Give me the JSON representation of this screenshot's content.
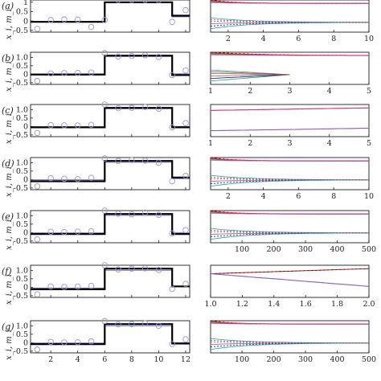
{
  "figure": {
    "panel_labels": [
      "(a)",
      "(b)",
      "(c)",
      "(d)",
      "(e)",
      "(f)",
      "(g)"
    ],
    "y_axis_label": "x_i, m_i"
  },
  "colors": {
    "step": "#000000",
    "mean": "#6b6bd6",
    "marker": "#9a9ac8",
    "red": "#e03030",
    "magenta": "#c040c0",
    "green": "#2a9a2a",
    "cyan": "#20a0b0",
    "black": "#202020"
  },
  "chart_data": [
    {
      "panel": "a",
      "type": "line",
      "left": {
        "x_ticks": [
          2,
          4,
          6,
          8,
          10,
          12
        ],
        "x_tick_labels": [],
        "xlim": [
          0.5,
          12.3
        ],
        "y_ticks": [
          -0.5,
          0,
          0.5,
          1.0
        ],
        "y_tick_labels": [
          "-0.5",
          "0",
          "0.5",
          "1"
        ],
        "ylim": [
          -0.6,
          1.12
        ],
        "step": {
          "x": [
            0.5,
            6,
            6,
            11,
            11,
            12.3
          ],
          "y": [
            -0.05,
            -0.05,
            1.0,
            1.0,
            0.28,
            0.28
          ]
        },
        "mean": {
          "x": [
            0.5,
            6,
            6,
            11,
            11,
            12.3
          ],
          "y": [
            -0.02,
            -0.02,
            0.98,
            0.98,
            0.22,
            0.22
          ]
        },
        "points": {
          "x": [
            1,
            2,
            3,
            4,
            5,
            6,
            7,
            8,
            9,
            10,
            11,
            12
          ],
          "y": [
            -0.42,
            0.05,
            0.08,
            0.07,
            -0.32,
            0.05,
            1.15,
            1.2,
            1.18,
            1.1,
            -0.05,
            0.58
          ]
        }
      },
      "right": {
        "x_ticks": [
          2,
          4,
          6,
          8,
          10
        ],
        "x_tick_labels": [
          "2",
          "4",
          "6",
          "8",
          "10"
        ],
        "xlim": [
          1,
          10
        ],
        "ylim": [
          -0.6,
          1.3
        ]
      }
    },
    {
      "panel": "b",
      "type": "line",
      "left": {
        "x_ticks": [
          2,
          4,
          6,
          8,
          10,
          12
        ],
        "x_tick_labels": [],
        "xlim": [
          0.5,
          12.3
        ],
        "y_ticks": [
          -0.5,
          0,
          0.5,
          1.0
        ],
        "y_tick_labels": [
          "-0.5",
          "0",
          "0.5",
          "1.0"
        ],
        "ylim": [
          -0.6,
          1.3
        ],
        "step": {
          "x": [
            0.5,
            6,
            6,
            11,
            11,
            12.3
          ],
          "y": [
            -0.02,
            -0.02,
            1.1,
            1.1,
            -0.05,
            -0.05
          ]
        },
        "mean": {
          "x": [
            0.5,
            6,
            6,
            11,
            11,
            12.3
          ],
          "y": [
            0.02,
            0.02,
            1.05,
            1.05,
            0.02,
            0.02
          ]
        },
        "points": {
          "x": [
            1,
            2,
            3,
            4,
            5,
            6,
            7,
            8,
            9,
            10,
            11,
            12
          ],
          "y": [
            -0.4,
            0.05,
            0.07,
            0.08,
            0.1,
            1.25,
            1.05,
            1.08,
            1.12,
            1.02,
            -0.05,
            0.22
          ]
        }
      },
      "right": {
        "x_ticks": [
          1,
          2,
          3,
          4,
          5
        ],
        "x_tick_labels": [
          "1",
          "2",
          "3",
          "4",
          "5"
        ],
        "xlim": [
          1,
          5
        ],
        "ylim": [
          -0.6,
          1.3
        ]
      }
    },
    {
      "panel": "c",
      "type": "line",
      "left": {
        "x_ticks": [
          2,
          4,
          6,
          8,
          10,
          12
        ],
        "x_tick_labels": [],
        "xlim": [
          0.5,
          12.3
        ],
        "y_ticks": [
          -0.5,
          0,
          0.5,
          1.0
        ],
        "y_tick_labels": [
          "-0.5",
          "0",
          "0.5",
          "1.0"
        ],
        "ylim": [
          -0.6,
          1.3
        ],
        "step": {
          "x": [
            0.5,
            6,
            6,
            11,
            11,
            12.3
          ],
          "y": [
            -0.05,
            -0.05,
            1.1,
            1.1,
            -0.05,
            -0.05
          ]
        },
        "mean": {
          "x": [
            0.5,
            6,
            6,
            11,
            11,
            12.3
          ],
          "y": [
            -0.02,
            -0.02,
            1.05,
            1.05,
            0.0,
            0.0
          ]
        },
        "points": {
          "x": [
            1,
            2,
            3,
            4,
            5,
            6,
            7,
            8,
            9,
            10,
            11,
            12
          ],
          "y": [
            -0.38,
            0.08,
            0.07,
            0.06,
            0.1,
            1.3,
            1.08,
            1.1,
            1.15,
            1.05,
            -0.05,
            0.2
          ]
        }
      },
      "right": {
        "x_ticks": [
          1,
          2,
          3,
          4,
          5
        ],
        "x_tick_labels": [
          "1",
          "2",
          "3",
          "4",
          "5"
        ],
        "xlim": [
          1,
          5
        ],
        "ylim": [
          -0.6,
          1.3
        ]
      }
    },
    {
      "panel": "d",
      "type": "line",
      "left": {
        "x_ticks": [
          2,
          4,
          6,
          8,
          10,
          12
        ],
        "x_tick_labels": [],
        "xlim": [
          0.5,
          12.3
        ],
        "y_ticks": [
          -0.5,
          0,
          0.5,
          1.0
        ],
        "y_tick_labels": [
          "-0.5",
          "0",
          "0.5",
          "1.0"
        ],
        "ylim": [
          -0.6,
          1.3
        ],
        "step": {
          "x": [
            0.5,
            6,
            6,
            11,
            11,
            12.3
          ],
          "y": [
            -0.1,
            -0.1,
            1.1,
            1.1,
            0.12,
            0.12
          ]
        },
        "mean": {
          "x": [
            0.5,
            6,
            6,
            11,
            11,
            12.3
          ],
          "y": [
            -0.02,
            -0.02,
            1.02,
            1.02,
            0.05,
            0.05
          ]
        },
        "points": {
          "x": [
            1,
            2,
            3,
            4,
            5,
            6,
            7,
            8,
            9,
            10,
            11,
            12
          ],
          "y": [
            -0.4,
            0.08,
            0.05,
            0.03,
            0.1,
            1.25,
            1.1,
            1.15,
            1.12,
            1.0,
            -0.1,
            0.22
          ]
        }
      },
      "right": {
        "x_ticks": [
          2,
          4,
          6,
          8,
          10
        ],
        "x_tick_labels": [
          "2",
          "4",
          "6",
          "8",
          "10"
        ],
        "xlim": [
          1,
          10
        ],
        "ylim": [
          -0.6,
          1.3
        ]
      }
    },
    {
      "panel": "e",
      "type": "line",
      "left": {
        "x_ticks": [
          2,
          4,
          6,
          8,
          10,
          12
        ],
        "x_tick_labels": [],
        "xlim": [
          0.5,
          12.3
        ],
        "y_ticks": [
          -0.5,
          0,
          0.5,
          1.0
        ],
        "y_tick_labels": [
          "-0.5",
          "0",
          "0.5",
          "1.0"
        ],
        "ylim": [
          -0.6,
          1.3
        ],
        "step": {
          "x": [
            0.5,
            6,
            6,
            11,
            11,
            12.3
          ],
          "y": [
            -0.08,
            -0.08,
            1.1,
            1.1,
            -0.08,
            -0.08
          ]
        },
        "mean": {
          "x": [
            0.5,
            6,
            6,
            11,
            11,
            12.3
          ],
          "y": [
            -0.02,
            -0.02,
            1.02,
            1.02,
            0.0,
            0.0
          ]
        },
        "points": {
          "x": [
            1,
            2,
            3,
            4,
            5,
            6,
            7,
            8,
            9,
            10,
            11,
            12
          ],
          "y": [
            -0.4,
            0.05,
            0.03,
            0.06,
            0.08,
            1.35,
            1.12,
            1.08,
            1.18,
            1.05,
            -0.05,
            0.15
          ]
        }
      },
      "right": {
        "x_ticks": [
          100,
          200,
          300,
          400,
          500
        ],
        "x_tick_labels": [
          "100",
          "200",
          "300",
          "400",
          "500"
        ],
        "xlim": [
          1,
          500
        ],
        "ylim": [
          -0.6,
          1.3
        ]
      }
    },
    {
      "panel": "f",
      "type": "line",
      "left": {
        "x_ticks": [
          2,
          4,
          6,
          8,
          10,
          12
        ],
        "x_tick_labels": [],
        "xlim": [
          0.5,
          12.3
        ],
        "y_ticks": [
          -0.5,
          0,
          0.5,
          1.0
        ],
        "y_tick_labels": [
          "-0.5",
          "0",
          "0.5",
          "1.0"
        ],
        "ylim": [
          -0.6,
          1.3
        ],
        "step": {
          "x": [
            0.5,
            6,
            6,
            11,
            11,
            12.3
          ],
          "y": [
            -0.12,
            -0.12,
            1.1,
            1.1,
            0.05,
            0.05
          ]
        },
        "mean": {
          "x": [
            0.5,
            6,
            6,
            11,
            11,
            12.3
          ],
          "y": [
            -0.05,
            -0.05,
            1.0,
            1.0,
            0.05,
            0.05
          ]
        },
        "points": {
          "x": [
            1,
            2,
            3,
            4,
            5,
            6,
            7,
            8,
            9,
            10,
            11,
            12
          ],
          "y": [
            -0.42,
            0.05,
            0.02,
            0.04,
            0.08,
            1.3,
            1.05,
            1.1,
            1.12,
            1.02,
            -0.1,
            0.2
          ]
        }
      },
      "right": {
        "x_ticks": [
          1.0,
          1.2,
          1.4,
          1.6,
          1.8,
          2.0
        ],
        "x_tick_labels": [
          "1.0",
          "1.2",
          "1.4",
          "1.6",
          "1.8",
          "2.0"
        ],
        "xlim": [
          1,
          2
        ],
        "ylim": [
          -0.6,
          1.3
        ]
      }
    },
    {
      "panel": "g",
      "type": "line",
      "left": {
        "x_ticks": [
          2,
          4,
          6,
          8,
          10,
          12
        ],
        "x_tick_labels": [
          "2",
          "4",
          "6",
          "8",
          "10",
          "12"
        ],
        "xlim": [
          0.5,
          12.3
        ],
        "y_ticks": [
          -0.5,
          0,
          0.5,
          1.0
        ],
        "y_tick_labels": [
          "-0.5",
          "0",
          "0.5",
          "1.0"
        ],
        "ylim": [
          -0.6,
          1.3
        ],
        "step": {
          "x": [
            0.5,
            6,
            6,
            11,
            11,
            12.3
          ],
          "y": [
            -0.08,
            -0.08,
            1.1,
            1.1,
            -0.05,
            -0.05
          ]
        },
        "mean": {
          "x": [
            0.5,
            6,
            6,
            11,
            11,
            12.3
          ],
          "y": [
            -0.02,
            -0.02,
            1.0,
            1.0,
            0.0,
            0.0
          ]
        },
        "points": {
          "x": [
            1,
            2,
            3,
            4,
            5,
            6,
            7,
            8,
            9,
            10,
            11,
            12
          ],
          "y": [
            -0.4,
            0.05,
            0.02,
            0.03,
            0.08,
            1.28,
            1.08,
            1.1,
            1.15,
            1.0,
            -0.08,
            0.2
          ]
        }
      },
      "right": {
        "x_ticks": [
          100,
          200,
          300,
          400,
          500
        ],
        "x_tick_labels": [
          "100",
          "200",
          "300",
          "400",
          "500"
        ],
        "xlim": [
          1,
          500
        ],
        "ylim": [
          -0.6,
          1.3
        ]
      }
    }
  ]
}
